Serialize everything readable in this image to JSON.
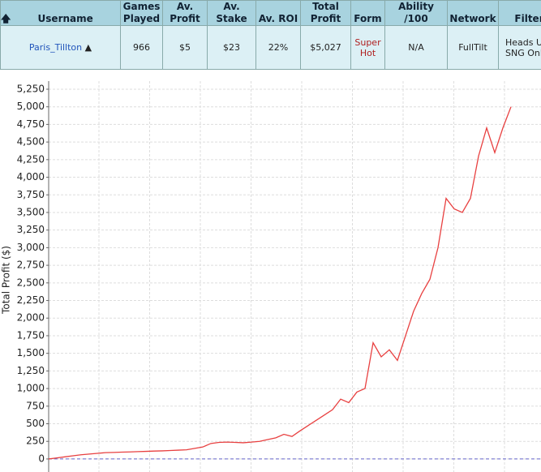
{
  "table": {
    "headers": [
      "Username",
      "Games Played",
      "Av. Profit",
      "Av. Stake",
      "Av. ROI",
      "Total Profit",
      "Form",
      "Ability /100",
      "Network",
      "Filter"
    ],
    "rows": [
      [
        "Paris_Tillton",
        "966",
        "$5",
        "$23",
        "22%",
        "$5,027",
        "Super Hot",
        "N/A",
        "FullTilt",
        "Heads Up SNG Only"
      ]
    ]
  },
  "chart_data": {
    "type": "line",
    "y_label": "Total Profit ($)",
    "ylim": [
      -185,
      5365
    ],
    "yticks": [
      0,
      250,
      500,
      750,
      {
        "value": 1000,
        "label": "1,000"
      },
      {
        "value": 1250,
        "label": "1,250"
      },
      {
        "value": 1500,
        "label": "1,500"
      },
      {
        "value": 1750,
        "label": "1,750"
      },
      {
        "value": 2000,
        "label": "2,000"
      },
      {
        "value": 2250,
        "label": "2,250"
      },
      {
        "value": 2500,
        "label": "2,500"
      },
      {
        "value": 2750,
        "label": "2,750"
      },
      {
        "value": 3000,
        "label": "3,000"
      },
      {
        "value": 3250,
        "label": "3,250"
      },
      {
        "value": 3500,
        "label": "3,500"
      },
      {
        "value": 3750,
        "label": "3,750"
      },
      {
        "value": 4000,
        "label": "4,000"
      },
      {
        "value": 4250,
        "label": "4,250"
      },
      {
        "value": 4500,
        "label": "4,500"
      },
      {
        "value": 4750,
        "label": "4,750"
      },
      {
        "value": 5000,
        "label": "5,000"
      },
      {
        "value": 5250,
        "label": "5,250"
      }
    ],
    "grid": true,
    "color": "#e84040",
    "values": [
      0,
      15,
      30,
      45,
      60,
      70,
      80,
      90,
      93,
      97,
      100,
      104,
      108,
      112,
      115,
      120,
      125,
      130,
      150,
      170,
      220,
      235,
      240,
      235,
      230,
      240,
      250,
      275,
      300,
      350,
      320,
      400,
      475,
      550,
      625,
      700,
      850,
      800,
      950,
      1000,
      1650,
      1450,
      1550,
      1400,
      1750,
      2100,
      2350,
      2550,
      3000,
      3700,
      3550,
      3500,
      3700,
      4300,
      4700,
      4350,
      4700,
      5000
    ]
  }
}
